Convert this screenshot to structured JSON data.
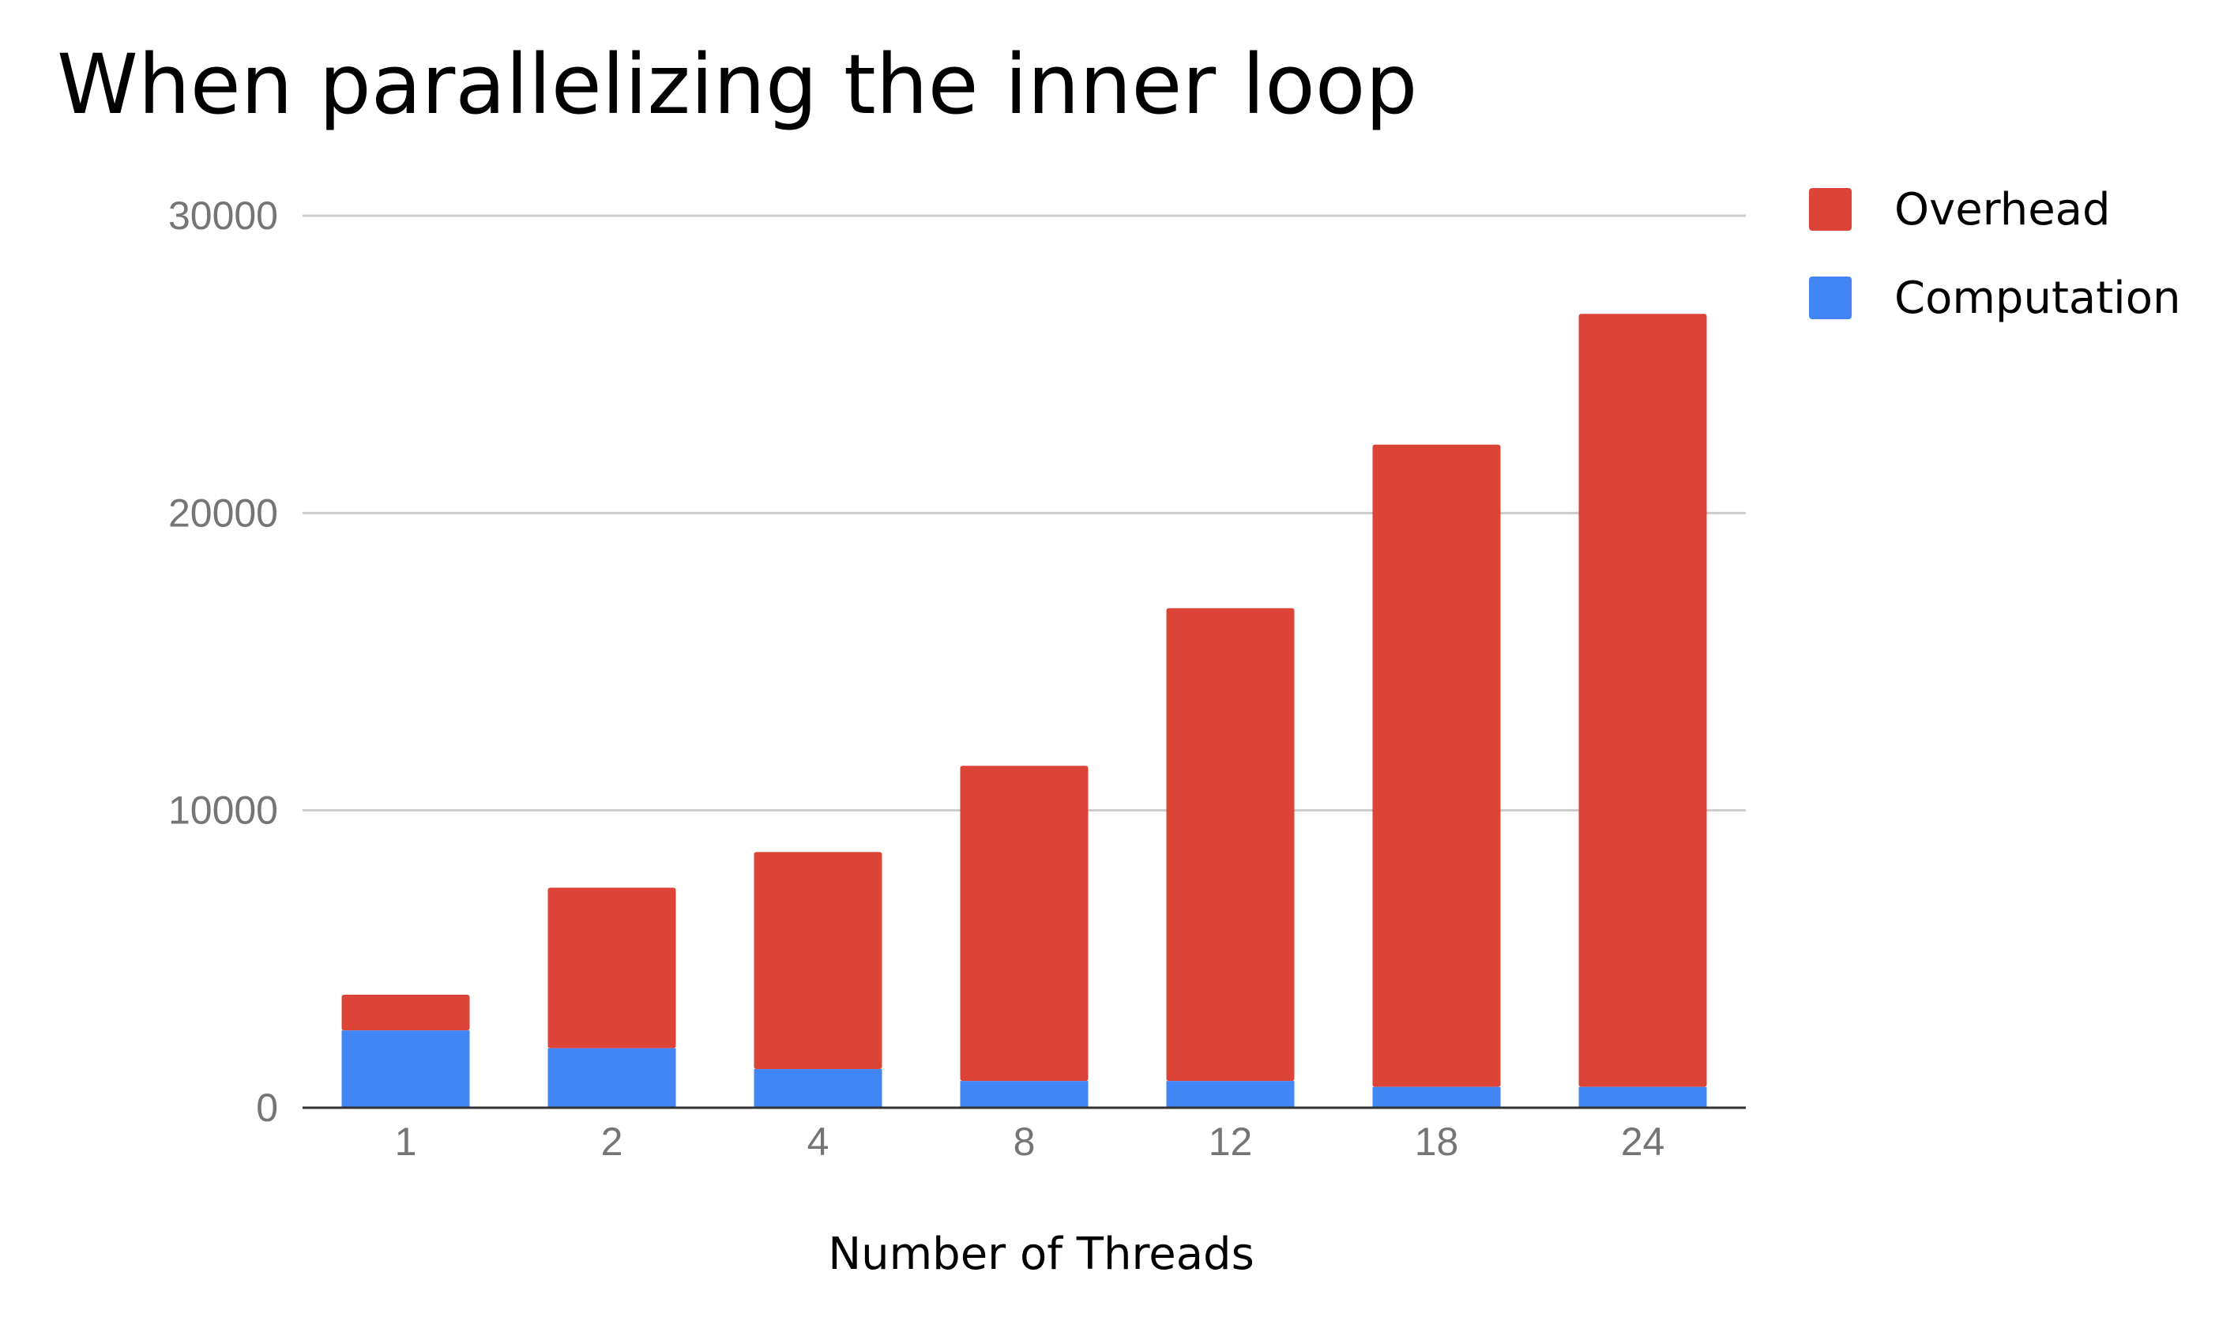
{
  "chart_data": {
    "type": "bar",
    "stacked": true,
    "title": "When parallelizing the inner loop",
    "xlabel": "Number of Threads",
    "ylabel": "",
    "categories": [
      "1",
      "2",
      "4",
      "8",
      "12",
      "18",
      "24"
    ],
    "series": [
      {
        "name": "Computation",
        "color": "#4285f4",
        "values": [
          2600,
          2000,
          1300,
          900,
          900,
          700,
          700
        ]
      },
      {
        "name": "Overhead",
        "color": "#db4437",
        "values": [
          1200,
          5400,
          7300,
          10600,
          15900,
          21600,
          26000
        ]
      }
    ],
    "ylim": [
      0,
      30000
    ],
    "yticks": [
      0,
      10000,
      20000,
      30000
    ],
    "grid": true,
    "legend_position": "right",
    "legend_order": [
      "Overhead",
      "Computation"
    ]
  }
}
